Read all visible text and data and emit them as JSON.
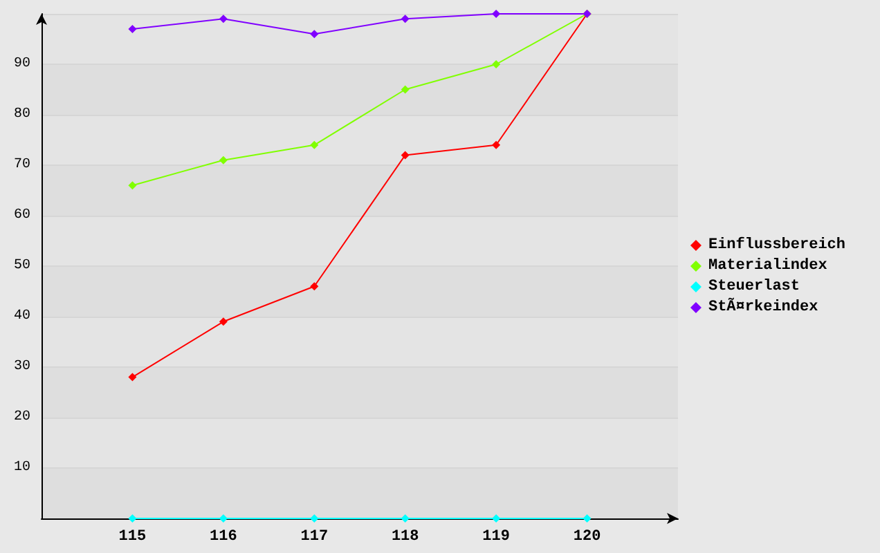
{
  "chart_data": {
    "type": "line",
    "x": [
      115,
      116,
      117,
      118,
      119,
      120
    ],
    "xlim": [
      114,
      121
    ],
    "xticks": [
      115,
      116,
      117,
      118,
      119,
      120
    ],
    "ylim": [
      0,
      100
    ],
    "yticks": [
      10,
      20,
      30,
      40,
      50,
      60,
      70,
      80,
      90
    ],
    "grid": "y",
    "legend": "right",
    "marker": "diamond",
    "series": [
      {
        "name": "Einflussbereich",
        "color": "#ff0000",
        "values": [
          28,
          39,
          46,
          72,
          74,
          100
        ]
      },
      {
        "name": "Materialindex",
        "color": "#80ff00",
        "values": [
          66,
          71,
          74,
          85,
          90,
          100
        ]
      },
      {
        "name": "Steuerlast",
        "color": "#00ffff",
        "values": [
          0,
          0,
          0,
          0,
          0,
          0
        ]
      },
      {
        "name": "StÃ¤rkeindex",
        "color": "#8000ff",
        "values": [
          97,
          99,
          96,
          99,
          100,
          100
        ]
      }
    ]
  }
}
